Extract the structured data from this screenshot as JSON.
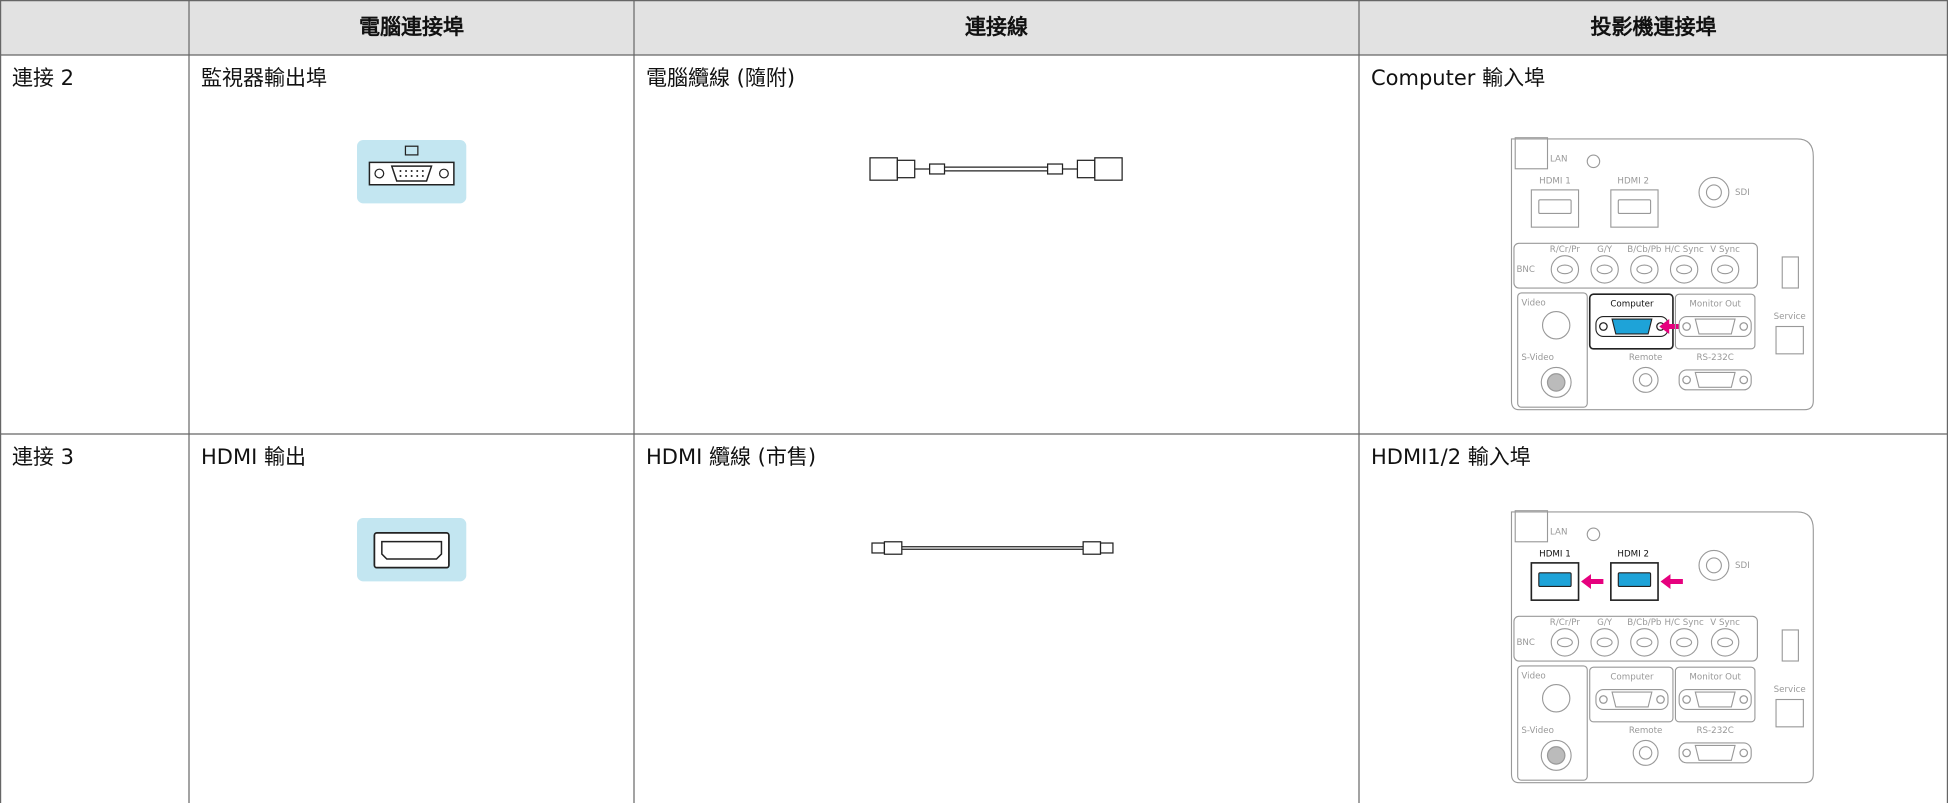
{
  "table": {
    "headers": [
      "電腦連接埠",
      "連接線",
      "投影機連接埠"
    ],
    "rows": [
      [
        "連接 2",
        "監視器輸出埠",
        "電腦纜線 (隨附)",
        "Computer 輸入埠"
      ],
      [
        "連接 3",
        "HDMI 輸出",
        "HDMI 纜線 (市售)",
        "HDMI1/2 輸入埠"
      ]
    ]
  },
  "panel_labels": [
    "LAN",
    "HDMI 1",
    "HDMI 2",
    "SDI",
    "R/Cr/Pr",
    "G/Y",
    "B/Cb/Pb",
    "H/C Sync",
    "V Sync",
    "BNC",
    "Video",
    "S-Video",
    "Computer",
    "Monitor Out",
    "Remote",
    "RS-232C",
    "Service"
  ]
}
